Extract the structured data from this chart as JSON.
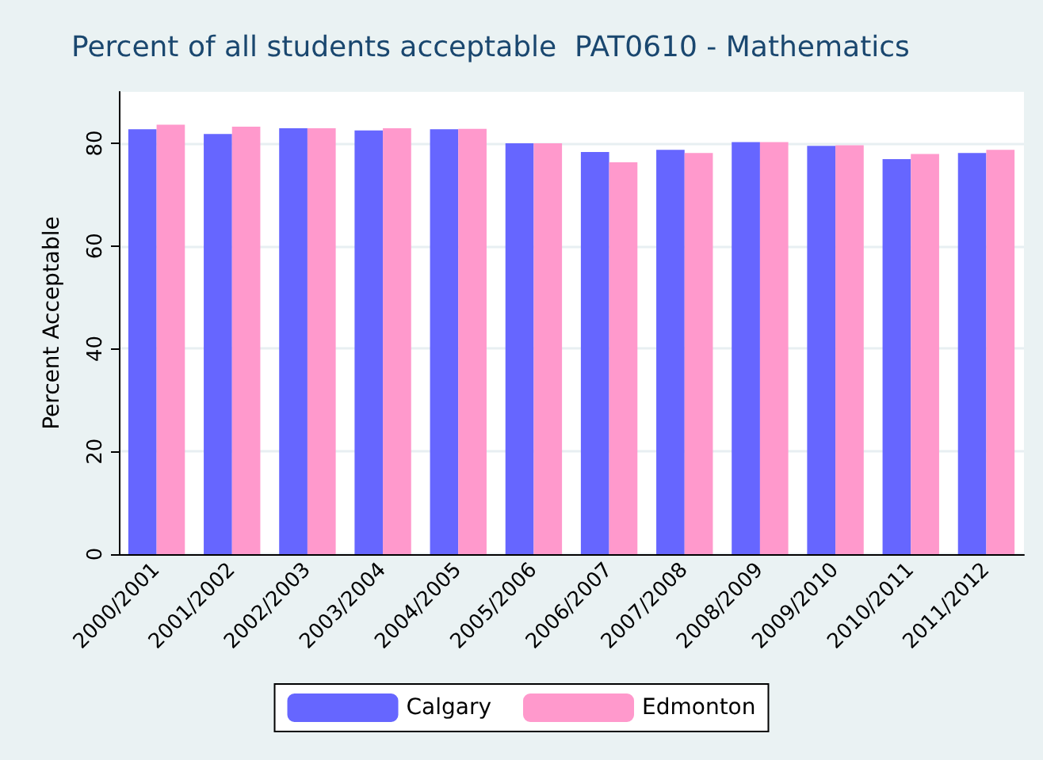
{
  "chart_data": {
    "type": "bar",
    "title": "Percent of all students acceptable  PAT0610 - Mathematics",
    "ylabel": "Percent Acceptable",
    "categories": [
      "2000/2001",
      "2001/2002",
      "2002/2003",
      "2003/2004",
      "2004/2005",
      "2005/2006",
      "2006/2007",
      "2007/2008",
      "2008/2009",
      "2009/2010",
      "2010/2011",
      "2011/2012"
    ],
    "series": [
      {
        "name": "Calgary",
        "color": "#6666ff",
        "values": [
          82.7,
          81.8,
          82.9,
          82.5,
          82.7,
          80.0,
          78.3,
          78.7,
          80.2,
          79.5,
          76.9,
          78.1
        ]
      },
      {
        "name": "Edmonton",
        "color": "#ff99cc",
        "values": [
          83.6,
          83.2,
          82.9,
          82.9,
          82.8,
          80.0,
          76.3,
          78.1,
          80.2,
          79.6,
          77.9,
          78.7
        ]
      }
    ],
    "ylim": [
      0,
      90
    ],
    "yticks": [
      0,
      20,
      40,
      60,
      80
    ],
    "grid": "y",
    "legend": "bottom"
  }
}
